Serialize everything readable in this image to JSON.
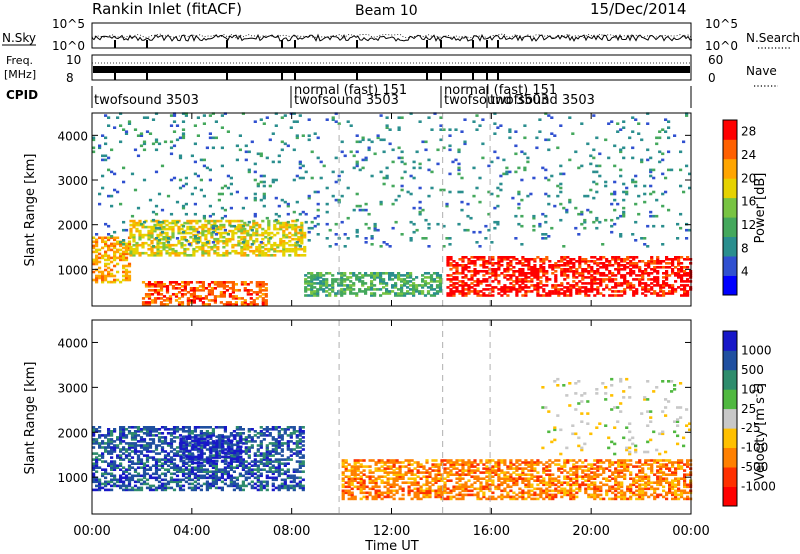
{
  "header": {
    "station": "Rankin Inlet (fitACF)",
    "beam": "Beam 10",
    "date": "15/Dec/2014"
  },
  "labels": {
    "nsky": "N.Sky",
    "nsearch": "N.Search",
    "freq_line1": "Freq.",
    "freq_line2": "[MHz]",
    "nave": "Nave",
    "cpid": "CPID",
    "nsky_ticks": [
      "10^5",
      "10^0"
    ],
    "nsearch_ticks": [
      "10^5",
      "10^0"
    ],
    "freq_ticks": [
      "10",
      "8"
    ],
    "nave_ticks": [
      "60",
      "0"
    ]
  },
  "cpid_segments": [
    {
      "line1": "twofsound 3503",
      "line2": ""
    },
    {
      "line1": "normal (fast) 151",
      "line2": "twofsound 3503"
    },
    {
      "line1": "normal (fast) 151",
      "line2": "twofsound 3503"
    },
    {
      "line1": "twofsound 3503",
      "line2": ""
    }
  ],
  "chart_data": [
    {
      "type": "heatmap",
      "title": "",
      "xlabel": "Time UT",
      "ylabel": "Slant Range [km]",
      "x_ticks": [
        "00:00",
        "04:00",
        "08:00",
        "12:00",
        "16:00",
        "20:00",
        "00:00"
      ],
      "x_range_hours": [
        0,
        24
      ],
      "y_ticks": [
        "1000",
        "2000",
        "3000",
        "4000"
      ],
      "y_range_km": [
        180,
        4500
      ],
      "grid": "dashed vertical lines at mode changes",
      "colorbar": {
        "label": "Power [dB]",
        "ticks": [
          "4",
          "8",
          "12",
          "16",
          "20",
          "24",
          "28"
        ],
        "range": [
          0,
          30
        ],
        "colors": [
          "#0000ff",
          "#3050d0",
          "#2a8e8e",
          "#44a85c",
          "#78c442",
          "#e6d200",
          "#ffa500",
          "#ff6000",
          "#ff0000"
        ]
      },
      "regions": [
        {
          "t": [
            0,
            1.5
          ],
          "r": [
            700,
            1700
          ],
          "value": 24
        },
        {
          "t": [
            1.5,
            8.5
          ],
          "r": [
            1300,
            2100
          ],
          "value": 20
        },
        {
          "t": [
            2,
            7
          ],
          "r": [
            200,
            700
          ],
          "value": 28
        },
        {
          "t": [
            14.2,
            24
          ],
          "r": [
            400,
            1300
          ],
          "value": 30
        },
        {
          "t": [
            8.5,
            14
          ],
          "r": [
            400,
            900
          ],
          "value": 12
        },
        {
          "t": [
            0,
            24
          ],
          "r": [
            1500,
            4500
          ],
          "value": 6
        }
      ]
    },
    {
      "type": "heatmap",
      "title": "",
      "xlabel": "Time UT",
      "ylabel": "Slant Range [km]",
      "x_ticks": [
        "00:00",
        "04:00",
        "08:00",
        "12:00",
        "16:00",
        "20:00",
        "00:00"
      ],
      "x_range_hours": [
        0,
        24
      ],
      "y_ticks": [
        "1000",
        "2000",
        "3000",
        "4000"
      ],
      "y_range_km": [
        180,
        4500
      ],
      "grid": "dashed vertical lines at mode changes",
      "colorbar": {
        "label": "Velocity [m s^-1]",
        "ticks": [
          "1000",
          "500",
          "100",
          "25",
          "-25",
          "-100",
          "-500",
          "-1000"
        ],
        "colors": [
          "#1818c8",
          "#2050a0",
          "#2e8c6c",
          "#50b840",
          "#c8c8c8",
          "#ffc000",
          "#ff8000",
          "#ff3000",
          "#ff0000"
        ]
      },
      "regions": [
        {
          "t": [
            0,
            8.5
          ],
          "r": [
            700,
            2100
          ],
          "value": 500
        },
        {
          "t": [
            3.5,
            6
          ],
          "r": [
            1300,
            1900
          ],
          "value": 1000
        },
        {
          "t": [
            10,
            24
          ],
          "r": [
            500,
            1400
          ],
          "value": -250
        },
        {
          "t": [
            18,
            24
          ],
          "r": [
            1500,
            3200
          ],
          "value": 0
        }
      ]
    }
  ],
  "colors": {
    "panel_border": "#000000",
    "dashed_line": "#b0b0b0"
  }
}
